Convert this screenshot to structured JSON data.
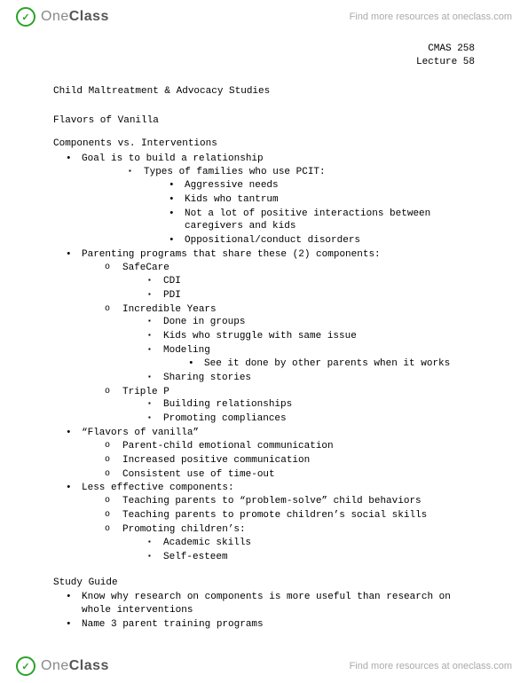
{
  "brand": {
    "logo_one": "One",
    "logo_class": "Class",
    "tagline": "Find more resources at oneclass.com"
  },
  "course": {
    "code": "CMAS 258",
    "lecture": "Lecture 58"
  },
  "doc": {
    "title": "Child Maltreatment & Advocacy Studies",
    "subtitle": "Flavors of Vanilla",
    "section1": "Components vs. Interventions",
    "b1": "Goal is to build a relationship",
    "b1a": "Types of families who use PCIT:",
    "b1a1": "Aggressive needs",
    "b1a2": "Kids who tantrum",
    "b1a3": "Not a lot of positive interactions between caregivers and kids",
    "b1a4": "Oppositional/conduct disorders",
    "b2": "Parenting programs that share these (2) components:",
    "b2a": "SafeCare",
    "b2a1": "CDI",
    "b2a2": "PDI",
    "b2b": "Incredible Years",
    "b2b1": "Done in groups",
    "b2b2": "Kids who struggle with same issue",
    "b2b3": "Modeling",
    "b2b3a": "See it done by other parents when it works",
    "b2b4": "Sharing stories",
    "b2c": "Triple P",
    "b2c1": "Building relationships",
    "b2c2": "Promoting compliances",
    "b3": "“Flavors of vanilla”",
    "b3a": "Parent-child emotional communication",
    "b3b": "Increased positive communication",
    "b3c": "Consistent use of time-out",
    "b4": "Less effective components:",
    "b4a": "Teaching parents to “problem-solve” child behaviors",
    "b4b": "Teaching parents to promote children’s social skills",
    "b4c": "Promoting children’s:",
    "b4c1": "Academic skills",
    "b4c2": "Self-esteem",
    "section2": "Study Guide",
    "sg1": "Know why research on components is more useful than research on whole interventions",
    "sg2": "Name 3 parent training programs"
  }
}
